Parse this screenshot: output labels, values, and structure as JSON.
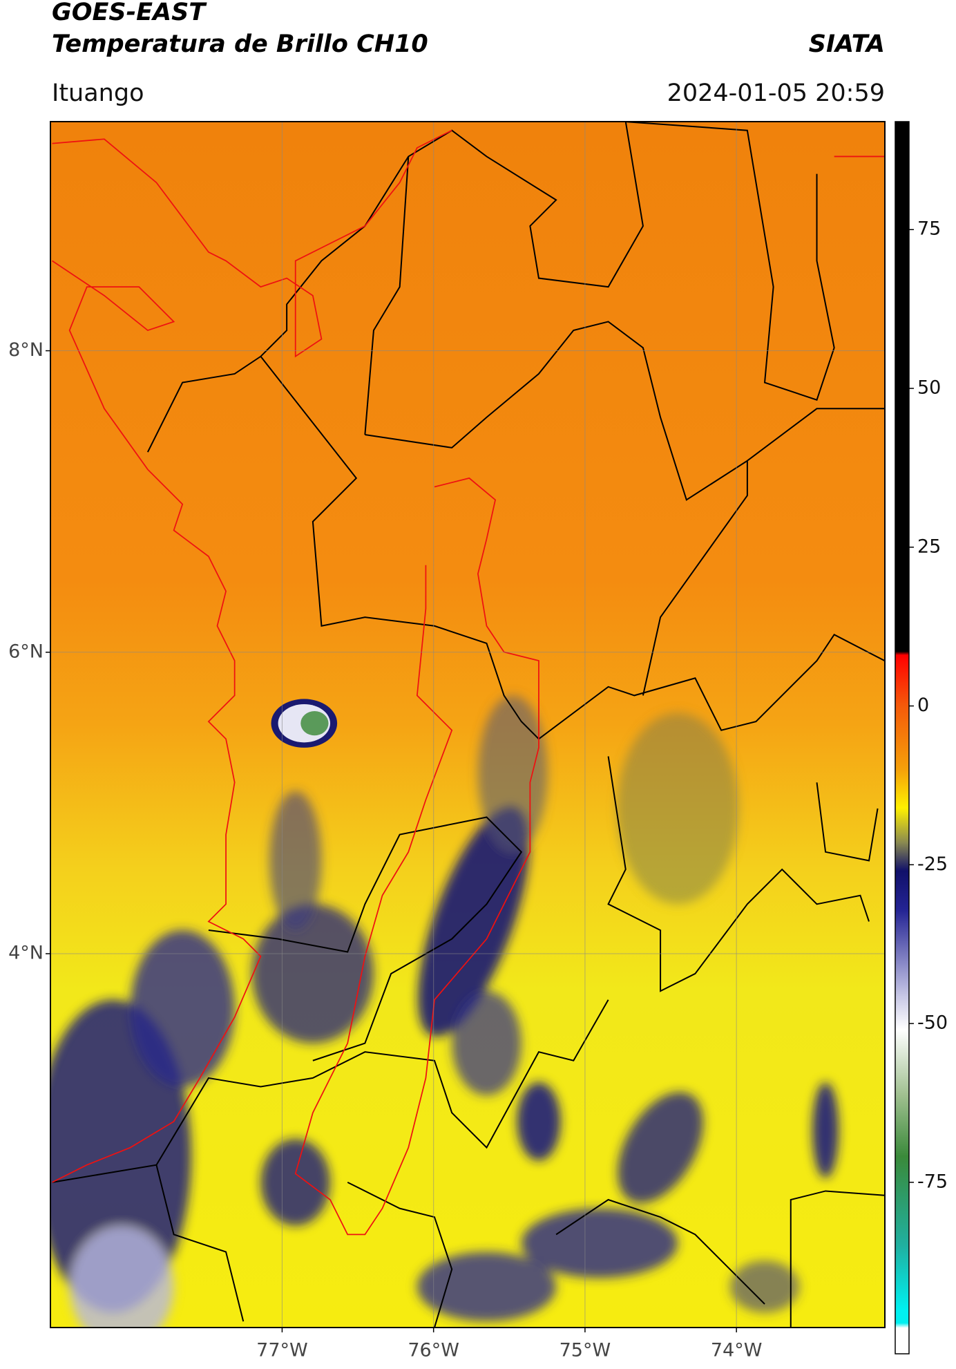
{
  "header": {
    "title": "GOES-EAST",
    "subtitle": "Temperatura de Brillo CH10",
    "source": "SIATA",
    "location": "Ituango",
    "timestamp": "2024-01-05 20:59"
  },
  "map": {
    "xlim": [
      -78.53,
      -73.02
    ],
    "ylim": [
      1.52,
      9.52
    ],
    "xticks": [
      {
        "value": -77,
        "label": "77°W"
      },
      {
        "value": -76,
        "label": "76°W"
      },
      {
        "value": -75,
        "label": "75°W"
      },
      {
        "value": -74,
        "label": "74°W"
      }
    ],
    "yticks": [
      {
        "value": 8,
        "label": "8°N"
      },
      {
        "value": 6,
        "label": "6°N"
      },
      {
        "value": 4,
        "label": "4°N"
      }
    ],
    "grid": true
  },
  "colorbar": {
    "lim": [
      -102,
      92
    ],
    "ticks": [
      75,
      50,
      25,
      0,
      -25,
      -50,
      -75
    ]
  }
}
